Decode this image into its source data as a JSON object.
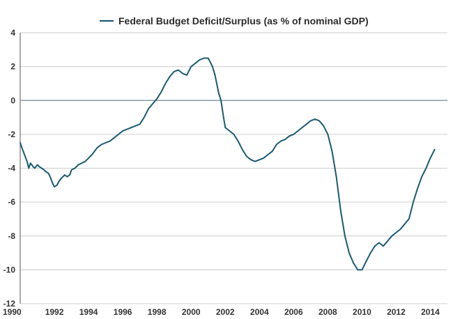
{
  "chart_data": {
    "type": "line",
    "title": "",
    "xlabel": "",
    "ylabel": "",
    "xlim": [
      1990,
      2015
    ],
    "ylim": [
      -12,
      4
    ],
    "grid": true,
    "legend_position": "top-center",
    "x_ticks": [
      1990,
      1992,
      1994,
      1996,
      1998,
      2000,
      2002,
      2004,
      2006,
      2008,
      2010,
      2012,
      2014
    ],
    "y_ticks": [
      4,
      2,
      0,
      -2,
      -4,
      -6,
      -8,
      -10,
      -12
    ],
    "colors": {
      "series": "#1a5a72",
      "grid": "#cccccc",
      "zero_line": "#8a9aa6"
    },
    "series": [
      {
        "name": "Federal Budget Deficit/Surplus (as % of nominal GDP)",
        "x": [
          1990.0,
          1990.1,
          1990.25,
          1990.4,
          1990.5,
          1990.6,
          1990.75,
          1990.85,
          1991.0,
          1991.1,
          1991.25,
          1991.4,
          1991.5,
          1991.65,
          1991.75,
          1991.9,
          1992.0,
          1992.15,
          1992.25,
          1992.4,
          1992.5,
          1992.6,
          1992.75,
          1992.9,
          1993.0,
          1993.2,
          1993.4,
          1993.6,
          1993.8,
          1994.0,
          1994.2,
          1994.5,
          1994.75,
          1995.0,
          1995.25,
          1995.5,
          1995.75,
          1996.0,
          1996.25,
          1996.5,
          1996.75,
          1997.0,
          1997.25,
          1997.5,
          1997.75,
          1998.0,
          1998.25,
          1998.5,
          1998.75,
          1999.0,
          1999.25,
          1999.5,
          1999.75,
          2000.0,
          2000.25,
          2000.5,
          2000.75,
          2001.0,
          2001.1,
          2001.25,
          2001.4,
          2001.5,
          2001.6,
          2001.75,
          2001.9,
          2002.0,
          2002.25,
          2002.5,
          2002.75,
          2003.0,
          2003.25,
          2003.5,
          2003.75,
          2004.0,
          2004.25,
          2004.5,
          2004.75,
          2005.0,
          2005.25,
          2005.5,
          2005.75,
          2006.0,
          2006.25,
          2006.5,
          2006.75,
          2007.0,
          2007.25,
          2007.5,
          2007.75,
          2008.0,
          2008.25,
          2008.5,
          2008.75,
          2009.0,
          2009.25,
          2009.5,
          2009.75,
          2010.0,
          2010.25,
          2010.5,
          2010.75,
          2011.0,
          2011.25,
          2011.5,
          2011.75,
          2012.0,
          2012.25,
          2012.5,
          2012.75,
          2013.0,
          2013.25,
          2013.5,
          2013.75,
          2014.0,
          2014.25
        ],
        "values": [
          -2.5,
          -2.8,
          -3.2,
          -3.6,
          -4.0,
          -3.7,
          -3.9,
          -4.0,
          -3.8,
          -3.9,
          -4.0,
          -4.1,
          -4.2,
          -4.3,
          -4.5,
          -4.9,
          -5.1,
          -5.0,
          -4.8,
          -4.6,
          -4.5,
          -4.4,
          -4.5,
          -4.4,
          -4.1,
          -4.0,
          -3.8,
          -3.7,
          -3.6,
          -3.4,
          -3.2,
          -2.8,
          -2.6,
          -2.5,
          -2.4,
          -2.2,
          -2.0,
          -1.8,
          -1.7,
          -1.6,
          -1.5,
          -1.4,
          -1.0,
          -0.5,
          -0.2,
          0.1,
          0.5,
          1.0,
          1.4,
          1.7,
          1.8,
          1.6,
          1.5,
          2.0,
          2.2,
          2.4,
          2.5,
          2.5,
          2.3,
          2.0,
          1.5,
          1.0,
          0.5,
          0.0,
          -1.0,
          -1.6,
          -1.8,
          -2.0,
          -2.4,
          -2.9,
          -3.3,
          -3.5,
          -3.6,
          -3.5,
          -3.4,
          -3.2,
          -3.0,
          -2.6,
          -2.4,
          -2.3,
          -2.1,
          -2.0,
          -1.8,
          -1.6,
          -1.4,
          -1.2,
          -1.1,
          -1.2,
          -1.5,
          -2.0,
          -3.0,
          -4.5,
          -6.5,
          -8.0,
          -9.0,
          -9.6,
          -10.0,
          -10.0,
          -9.5,
          -9.0,
          -8.6,
          -8.4,
          -8.6,
          -8.3,
          -8.0,
          -7.8,
          -7.6,
          -7.3,
          -7.0,
          -6.0,
          -5.2,
          -4.5,
          -4.0,
          -3.4,
          -2.9
        ]
      }
    ]
  }
}
